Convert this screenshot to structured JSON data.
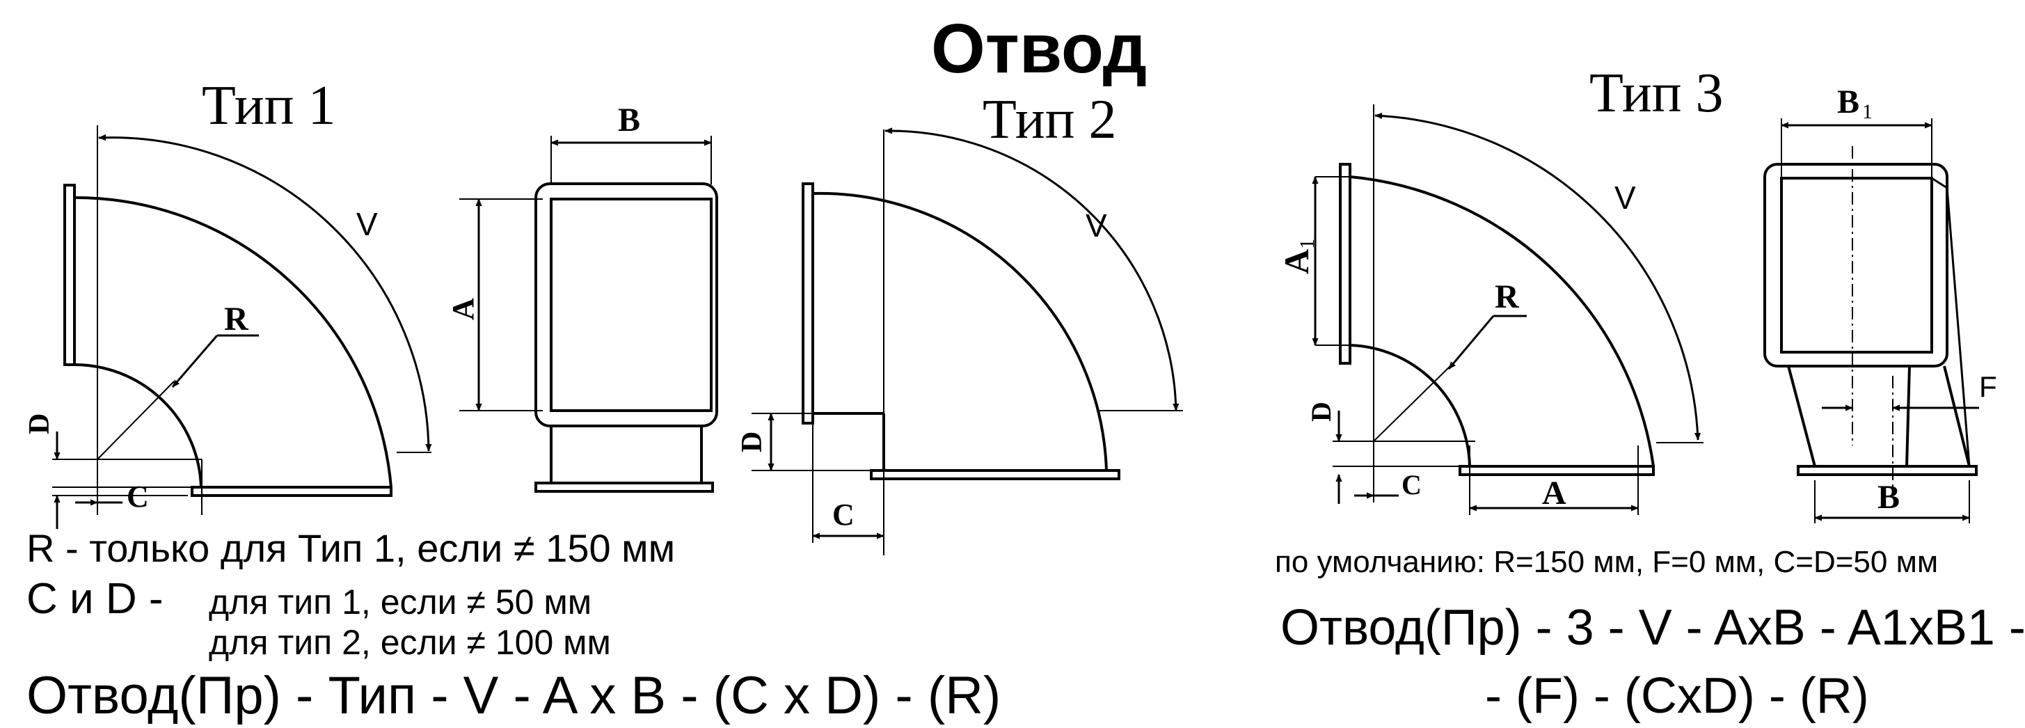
{
  "title": "Отвод",
  "type1": {
    "label": "Тип 1",
    "v": "V",
    "r": "R",
    "d": "D",
    "c": "C"
  },
  "section": {
    "b": "B",
    "a": "A"
  },
  "type2": {
    "label": "Тип 2",
    "v": "V",
    "d": "D",
    "c": "C"
  },
  "type3": {
    "label": "Тип 3",
    "a1": "A",
    "a1_sub": "1",
    "v": "V",
    "r": "R",
    "d": "D",
    "c": "C",
    "a": "A",
    "b1": "B",
    "b1_sub": "1",
    "f": "F",
    "b": "B"
  },
  "notes": {
    "line1": "R - только для Тип 1, если ≠ 150 мм",
    "line2_prefix": "C и D - ",
    "line2": "для тип 1, если ≠ 50 мм",
    "line3": "для тип 2, если ≠ 100 мм",
    "formula": "Отвод(Пр) - Тип - V - A x B - (C x D) - (R)"
  },
  "type3_notes": {
    "defaults": "по умолчанию: R=150 мм, F=0 мм, C=D=50 мм",
    "formula_line1": "Отвод(Пр) - 3 - V - AxB - A1xB1 -",
    "formula_line2": "- (F) - (CxD) - (R)"
  }
}
